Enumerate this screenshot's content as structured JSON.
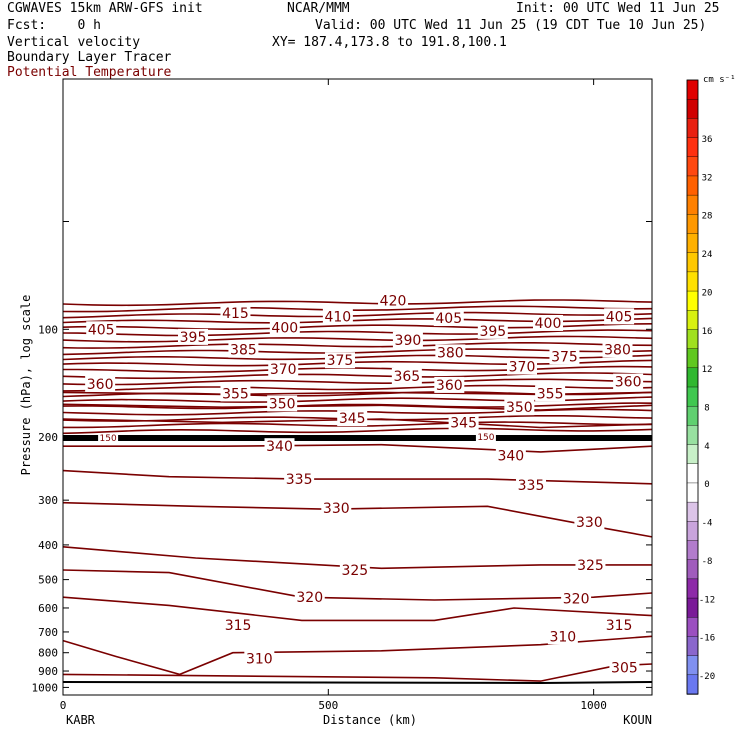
{
  "header": {
    "model": "CGWAVES 15km ARW-GFS init",
    "org": "NCAR/MMM",
    "init": "Init: 00 UTC Wed 11 Jun 25",
    "fcst": "Fcst:    0 h",
    "valid": "Valid: 00 UTC Wed 11 Jun 25 (19 CDT Tue 10 Jun 25)",
    "field1": "Vertical velocity",
    "field2": "Boundary Layer Tracer",
    "field3": "Potential Temperature",
    "xy": "XY= 187.4,173.8 to 191.8,100.1"
  },
  "colors": {
    "contour": "#7a0000",
    "field3_text": "#7a0000"
  },
  "chart_data": {
    "type": "contour",
    "title": "Potential Temperature",
    "xlabel": "Distance (km)",
    "ylabel": "Pressure (hPa), log scale",
    "xlim": [
      0,
      1110
    ],
    "ylim_hpa": [
      1050,
      20
    ],
    "yscale": "log",
    "x_ticks": [
      "0",
      "500",
      "1000"
    ],
    "x_tick_values": [
      0,
      500,
      1000
    ],
    "y_ticks": [
      "100",
      "200",
      "300",
      "400",
      "500",
      "600",
      "700",
      "800",
      "900",
      "1000"
    ],
    "y_tick_values": [
      100,
      200,
      300,
      400,
      500,
      600,
      700,
      800,
      900,
      1000
    ],
    "endpoints": [
      "KABR",
      "KOUN"
    ],
    "contour_interval": 5,
    "contour_levels_labeled": [
      305,
      310,
      315,
      320,
      325,
      330,
      335,
      340,
      345,
      350,
      355,
      360,
      365,
      370,
      375,
      380,
      385,
      390,
      395,
      400,
      405,
      410,
      415,
      420
    ],
    "contour_labels": [
      {
        "text": "420",
        "x_km": 622,
        "p_hpa": 83
      },
      {
        "text": "415",
        "x_km": 325,
        "p_hpa": 90
      },
      {
        "text": "410",
        "x_km": 518,
        "p_hpa": 92
      },
      {
        "text": "405",
        "x_km": 72,
        "p_hpa": 100
      },
      {
        "text": "405",
        "x_km": 727,
        "p_hpa": 93
      },
      {
        "text": "405",
        "x_km": 1048,
        "p_hpa": 92
      },
      {
        "text": "400",
        "x_km": 418,
        "p_hpa": 99
      },
      {
        "text": "400",
        "x_km": 914,
        "p_hpa": 96
      },
      {
        "text": "395",
        "x_km": 245,
        "p_hpa": 105
      },
      {
        "text": "395",
        "x_km": 810,
        "p_hpa": 101
      },
      {
        "text": "390",
        "x_km": 650,
        "p_hpa": 107
      },
      {
        "text": "385",
        "x_km": 340,
        "p_hpa": 114
      },
      {
        "text": "380",
        "x_km": 730,
        "p_hpa": 116
      },
      {
        "text": "380",
        "x_km": 1045,
        "p_hpa": 114
      },
      {
        "text": "375",
        "x_km": 522,
        "p_hpa": 122
      },
      {
        "text": "375",
        "x_km": 945,
        "p_hpa": 119
      },
      {
        "text": "370",
        "x_km": 415,
        "p_hpa": 129
      },
      {
        "text": "370",
        "x_km": 865,
        "p_hpa": 127
      },
      {
        "text": "365",
        "x_km": 648,
        "p_hpa": 135
      },
      {
        "text": "360",
        "x_km": 70,
        "p_hpa": 142
      },
      {
        "text": "360",
        "x_km": 728,
        "p_hpa": 143
      },
      {
        "text": "360",
        "x_km": 1065,
        "p_hpa": 140
      },
      {
        "text": "355",
        "x_km": 325,
        "p_hpa": 151
      },
      {
        "text": "355",
        "x_km": 918,
        "p_hpa": 151
      },
      {
        "text": "350",
        "x_km": 413,
        "p_hpa": 161
      },
      {
        "text": "350",
        "x_km": 860,
        "p_hpa": 165
      },
      {
        "text": "345",
        "x_km": 545,
        "p_hpa": 177
      },
      {
        "text": "345",
        "x_km": 755,
        "p_hpa": 182
      },
      {
        "text": "340",
        "x_km": 408,
        "p_hpa": 212
      },
      {
        "text": "340",
        "x_km": 844,
        "p_hpa": 225
      },
      {
        "text": "335",
        "x_km": 445,
        "p_hpa": 262
      },
      {
        "text": "335",
        "x_km": 882,
        "p_hpa": 272
      },
      {
        "text": "330",
        "x_km": 515,
        "p_hpa": 315
      },
      {
        "text": "330",
        "x_km": 992,
        "p_hpa": 345
      },
      {
        "text": "325",
        "x_km": 550,
        "p_hpa": 470
      },
      {
        "text": "325",
        "x_km": 994,
        "p_hpa": 455
      },
      {
        "text": "320",
        "x_km": 465,
        "p_hpa": 560
      },
      {
        "text": "320",
        "x_km": 967,
        "p_hpa": 565
      },
      {
        "text": "315",
        "x_km": 330,
        "p_hpa": 670
      },
      {
        "text": "315",
        "x_km": 1048,
        "p_hpa": 670
      },
      {
        "text": "310",
        "x_km": 370,
        "p_hpa": 830
      },
      {
        "text": "310",
        "x_km": 942,
        "p_hpa": 720
      },
      {
        "text": "305",
        "x_km": 1058,
        "p_hpa": 880
      }
    ],
    "small_labels": [
      "150",
      "150"
    ],
    "colorbar": {
      "title": "cm s⁻¹",
      "ticks": [
        "-20",
        "-16",
        "-12",
        "-8",
        "-4",
        "0",
        "4",
        "8",
        "12",
        "16",
        "20",
        "24",
        "28",
        "32",
        "36"
      ],
      "colors": [
        "#6a78f0",
        "#8090f0",
        "#8a66cc",
        "#9b4fc0",
        "#7a1a98",
        "#8d2aa8",
        "#a05cbc",
        "#b27ccc",
        "#c9a4dc",
        "#dcc4e8",
        "#ffffff",
        "#ffffff",
        "#c8f0c8",
        "#98e0a0",
        "#60d070",
        "#40c850",
        "#30b830",
        "#60c820",
        "#a0e020",
        "#d8f010",
        "#ffff00",
        "#ffe000",
        "#ffc800",
        "#ffb000",
        "#ff9800",
        "#ff8000",
        "#ff6000",
        "#ff4810",
        "#ff3010",
        "#e82010",
        "#d00000",
        "#e00000"
      ]
    }
  }
}
